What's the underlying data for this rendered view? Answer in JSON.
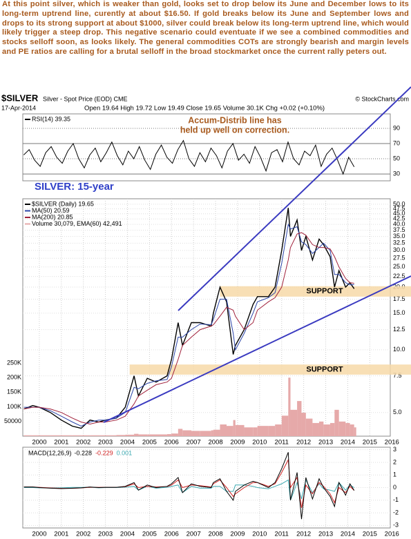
{
  "text": "At this point silver, which is weaker than gold, looks set to drop below its June and December lows to its long-term uptrend line, curently at about $16.50. If gold breaks below its June and September lows and drops to its strong support at about $1000, silver could break below its long-term uptrend line, which would likely trigger a steep drop. This negative scenario could eventuate if we see a combined commodities and stocks selloff soon, as looks likely. The general commodities COTs are strongly bearish and margin levels and PE ratios are calling for a brutal selloff in the broad stockmarket once the current rally peters out.",
  "header": {
    "symbol": "$SILVER",
    "name": "Silver - Spot Price (EOD) CME",
    "source": "© StockCharts.com",
    "date": "17-Apr-2014",
    "quote": "Open 19.64 High 19.72 Low 19.49 Close 19.65 Volume 30.1K Chg +0.02 (+0.10%)"
  },
  "chart_label": "SILVER: 15-year",
  "chart_data": [
    {
      "type": "line",
      "xlim": [
        1999.25,
        2015.93
      ],
      "ylim": [
        21,
        109
      ],
      "yticks": [
        90,
        70,
        50,
        30
      ],
      "grid": true,
      "annotations": [
        "Accum-Distrib line has",
        "held up well on correction."
      ],
      "x": [
        1999.29,
        1999.54,
        1999.79,
        2000.04,
        2000.29,
        2000.54,
        2000.79,
        2001.04,
        2001.29,
        2001.54,
        2001.79,
        2002.04,
        2002.29,
        2002.54,
        2002.79,
        2003.04,
        2003.29,
        2003.54,
        2003.79,
        2004.04,
        2004.29,
        2004.54,
        2004.79,
        2005.04,
        2005.29,
        2005.54,
        2005.79,
        2006.04,
        2006.29,
        2006.54,
        2006.79,
        2007.04,
        2007.29,
        2007.54,
        2007.79,
        2008.04,
        2008.29,
        2008.54,
        2008.79,
        2009.04,
        2009.29,
        2009.54,
        2009.79,
        2010.04,
        2010.29,
        2010.54,
        2010.79,
        2011.04,
        2011.29,
        2011.54,
        2011.79,
        2012.04,
        2012.29,
        2012.54,
        2012.79,
        2013.04,
        2013.29,
        2013.54,
        2013.79,
        2014.04,
        2014.29
      ],
      "series": [
        {
          "name": "RSI(14) 39.35",
          "color": "#000000",
          "values": [
            55,
            62,
            48,
            40,
            58,
            66,
            52,
            44,
            60,
            70,
            50,
            38,
            55,
            64,
            46,
            58,
            72,
            54,
            42,
            60,
            50,
            66,
            48,
            36,
            56,
            68,
            52,
            44,
            62,
            74,
            50,
            40,
            58,
            46,
            64,
            54,
            38,
            60,
            70,
            48,
            56,
            44,
            66,
            52,
            34,
            58,
            62,
            46,
            72,
            50,
            42,
            60,
            54,
            68,
            40,
            56,
            64,
            48,
            30,
            52,
            39.35
          ]
        }
      ]
    },
    {
      "type": "line",
      "log": true,
      "xlim": [
        1999.25,
        2015.93
      ],
      "ylim": [
        3.85,
        53.1
      ],
      "y2lim": [
        0,
        811000
      ],
      "grid": true,
      "xticks": [
        2000,
        2001,
        2002,
        2003,
        2004,
        2005,
        2006,
        2007,
        2008,
        2009,
        2010,
        2011,
        2012,
        2013,
        2014,
        2015,
        2016
      ],
      "yticks": [
        {
          "value": 50,
          "label": "50.0"
        },
        {
          "value": 47.5,
          "label": "47.5"
        },
        {
          "value": 45,
          "label": "45.0"
        },
        {
          "value": 42.5,
          "label": "42.5"
        },
        {
          "value": 40,
          "label": "40.0"
        },
        {
          "value": 37.5,
          "label": "37.5"
        },
        {
          "value": 35,
          "label": "35.0"
        },
        {
          "value": 32.5,
          "label": "32.5"
        },
        {
          "value": 30,
          "label": "30.0"
        },
        {
          "value": 27.5,
          "label": "27.5"
        },
        {
          "value": 25,
          "label": "25.0"
        },
        {
          "value": 22.5,
          "label": "22.5"
        },
        {
          "value": 20,
          "label": "20.0"
        },
        {
          "value": 17.5,
          "label": "17.5"
        },
        {
          "value": 15,
          "label": "15.0"
        },
        {
          "value": 12.5,
          "label": "12.5"
        },
        {
          "value": 10,
          "label": "10.0"
        },
        {
          "value": 7.5,
          "label": "7.5"
        },
        {
          "value": 5,
          "label": "5.0"
        }
      ],
      "y2ticks": [
        {
          "value": 250000,
          "label": "250K"
        },
        {
          "value": 200000,
          "label": "200K"
        },
        {
          "value": 150000,
          "label": "150K"
        },
        {
          "value": 100000,
          "label": "100K"
        },
        50000
      ],
      "bands": [
        {
          "label": "SUPPORT",
          "range": [
            18.0,
            20.2
          ],
          "from": 2008.2
        },
        {
          "label": "SUPPORT",
          "range": [
            7.6,
            8.5
          ],
          "from": 2004.1
        }
      ],
      "x": [
        1999.3,
        1999.7,
        2000.0,
        2000.5,
        2001.0,
        2001.5,
        2001.9,
        2002.3,
        2002.7,
        2003.0,
        2003.5,
        2003.9,
        2004.3,
        2004.5,
        2004.9,
        2005.3,
        2005.8,
        2006.0,
        2006.3,
        2006.5,
        2006.9,
        2007.3,
        2007.8,
        2007.9,
        2008.2,
        2008.5,
        2008.8,
        2008.9,
        2009.3,
        2009.7,
        2009.9,
        2010.4,
        2010.7,
        2011.0,
        2011.3,
        2011.4,
        2011.7,
        2011.9,
        2012.1,
        2012.4,
        2012.7,
        2012.9,
        2013.2,
        2013.4,
        2013.6,
        2013.9,
        2014.1,
        2014.29
      ],
      "series": [
        {
          "name": "Volume 30,079, EMA(60) 42,491",
          "color": "#e6a9a9",
          "axis": "y2",
          "bars": true,
          "values": [
            3000,
            3000,
            3000,
            3000,
            3000,
            3000,
            3000,
            3000,
            3000,
            3000,
            4000,
            5000,
            8000,
            6000,
            6000,
            6000,
            7000,
            9000,
            25000,
            20000,
            18000,
            18000,
            20000,
            22000,
            40000,
            35000,
            55000,
            38000,
            30000,
            30000,
            35000,
            35000,
            40000,
            70000,
            200000,
            90000,
            120000,
            80000,
            60000,
            45000,
            50000,
            40000,
            45000,
            90000,
            50000,
            45000,
            40000,
            30079
          ]
        },
        {
          "name": "$SILVER (Daily) 19.65",
          "color": "#000000",
          "values": [
            5.2,
            5.4,
            5.3,
            5.0,
            4.6,
            4.3,
            4.2,
            4.6,
            4.5,
            4.6,
            4.7,
            5.3,
            7.5,
            6.0,
            7.3,
            7.0,
            7.5,
            9.0,
            13.5,
            10.5,
            13.5,
            13.5,
            13.0,
            15.0,
            20.0,
            17.0,
            9.5,
            10.5,
            12.5,
            16.5,
            18.0,
            18.0,
            20.0,
            30.0,
            48.0,
            35.0,
            42.0,
            30.0,
            35.0,
            27.0,
            34.0,
            32.0,
            28.0,
            20.0,
            24.0,
            20.0,
            21.0,
            19.65
          ]
        },
        {
          "name": "MA(50) 20.59",
          "color": "#2a44a8",
          "values": [
            5.3,
            5.3,
            5.3,
            5.1,
            4.8,
            4.5,
            4.3,
            4.5,
            4.6,
            4.6,
            4.7,
            5.0,
            6.6,
            6.5,
            6.9,
            7.1,
            7.2,
            8.3,
            11.5,
            11.5,
            12.5,
            13.3,
            13.2,
            14.0,
            17.5,
            17.5,
            12.0,
            10.0,
            12.0,
            15.0,
            17.0,
            17.8,
            18.8,
            26.0,
            40.0,
            38.0,
            39.0,
            33.0,
            32.0,
            29.0,
            31.0,
            32.5,
            30.0,
            23.0,
            23.0,
            21.0,
            20.5,
            20.59
          ]
        },
        {
          "name": "MA(200) 20.85",
          "color": "#a0203a",
          "values": [
            5.2,
            5.3,
            5.3,
            5.2,
            5.0,
            4.7,
            4.5,
            4.4,
            4.5,
            4.5,
            4.6,
            4.8,
            5.5,
            6.0,
            6.4,
            6.8,
            7.0,
            7.3,
            9.0,
            10.5,
            11.5,
            12.5,
            13.0,
            13.2,
            14.5,
            16.0,
            15.5,
            14.5,
            12.5,
            13.5,
            15.5,
            17.0,
            17.8,
            20.0,
            27.0,
            31.0,
            36.0,
            36.5,
            35.5,
            32.0,
            31.0,
            31.0,
            30.5,
            28.0,
            25.0,
            22.0,
            21.0,
            20.85
          ]
        }
      ]
    },
    {
      "type": "line",
      "label": "MACD(12,26,9)",
      "xlim": [
        1999.25,
        2015.93
      ],
      "ylim": [
        -3.2,
        3.2
      ],
      "grid": true,
      "xticks": [
        2000,
        2001,
        2002,
        2003,
        2004,
        2005,
        2006,
        2007,
        2008,
        2009,
        2010,
        2011,
        2012,
        2013,
        2014,
        2015,
        2016
      ],
      "yticks": [
        3,
        2,
        1,
        0,
        -1,
        -2,
        -3
      ],
      "x": [
        1999.3,
        1999.7,
        2000.0,
        2000.5,
        2001.0,
        2001.5,
        2001.9,
        2002.3,
        2002.7,
        2003.0,
        2003.5,
        2003.9,
        2004.3,
        2004.5,
        2004.9,
        2005.3,
        2005.8,
        2006.0,
        2006.3,
        2006.5,
        2006.9,
        2007.3,
        2007.8,
        2007.9,
        2008.2,
        2008.5,
        2008.8,
        2008.9,
        2009.3,
        2009.7,
        2009.9,
        2010.4,
        2010.7,
        2011.0,
        2011.3,
        2011.4,
        2011.7,
        2011.9,
        2012.1,
        2012.4,
        2012.7,
        2012.9,
        2013.2,
        2013.4,
        2013.6,
        2013.9,
        2014.1,
        2014.29
      ],
      "series": [
        {
          "name": "0.001",
          "color": "#3aa8b0",
          "values": [
            0,
            0,
            -0.02,
            -0.02,
            -0.02,
            0.01,
            0.01,
            0.03,
            -0.02,
            0,
            0,
            0.03,
            0.1,
            -0.2,
            0.1,
            -0.05,
            0.02,
            0.1,
            0.2,
            -0.4,
            0.1,
            -0.05,
            -0.05,
            0.1,
            0.1,
            -0.3,
            -0.3,
            0.2,
            0.2,
            0.1,
            0,
            -0.1,
            0.1,
            0.3,
            0.6,
            -1,
            0.4,
            -0.9,
            0.6,
            -0.4,
            0.3,
            -0.1,
            -0.2,
            -0.3,
            0.4,
            -0.2,
            0.2,
            0.001
          ]
        },
        {
          "name": "-0.229",
          "color": "#d02020",
          "values": [
            0.05,
            0.05,
            0.02,
            -0.03,
            -0.06,
            -0.06,
            -0.03,
            0.02,
            0.02,
            0.02,
            0.02,
            0.07,
            0.3,
            0,
            0.1,
            0.05,
            0.08,
            0.2,
            0.6,
            0,
            0.2,
            0.15,
            0.05,
            0.3,
            0.6,
            0,
            -0.7,
            -0.5,
            0,
            0.4,
            0.4,
            0.1,
            0.3,
            1.2,
            2.2,
            0,
            0.8,
            -1.6,
            0.2,
            -0.5,
            0.4,
            0.1,
            -0.5,
            -1.2,
            0,
            -0.4,
            0.1,
            -0.229
          ]
        },
        {
          "name": "-0.228",
          "color": "#000000",
          "values": [
            0.05,
            0.05,
            0,
            -0.05,
            -0.08,
            -0.05,
            -0.02,
            0.05,
            0,
            0.02,
            0.02,
            0.1,
            0.4,
            -0.2,
            0.2,
            0,
            0.1,
            0.3,
            0.8,
            -0.4,
            0.3,
            0.1,
            0,
            0.4,
            0.7,
            -0.3,
            -1.0,
            -0.3,
            0.2,
            0.5,
            0.4,
            0,
            0.4,
            1.5,
            2.8,
            -1.0,
            1.2,
            -2.5,
            0.8,
            -0.9,
            0.7,
            0,
            -0.7,
            -1.5,
            0.4,
            -0.6,
            0.3,
            -0.228
          ]
        }
      ]
    }
  ]
}
